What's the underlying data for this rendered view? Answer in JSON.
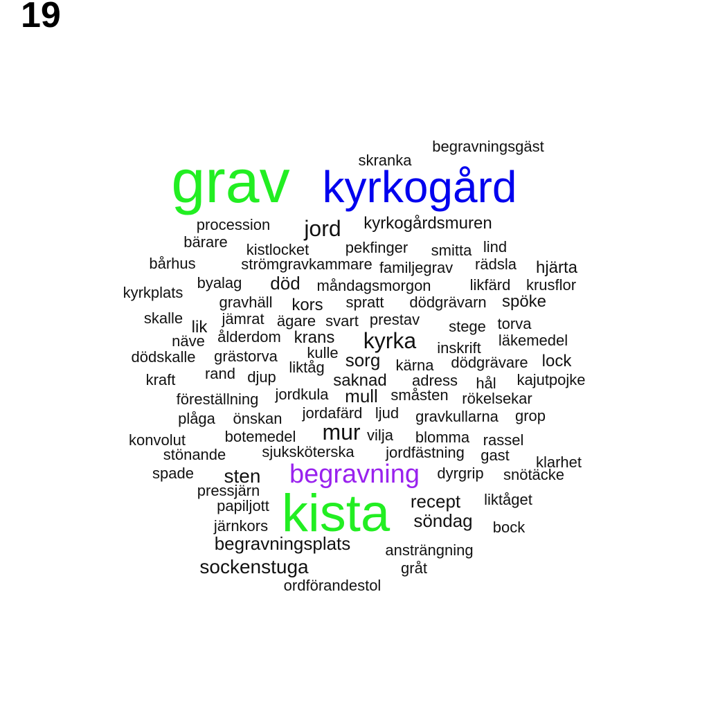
{
  "page_number": "19",
  "colors": {
    "green": "#22ee22",
    "blue": "#0000ee",
    "purple": "#9922ee",
    "black": "#111111"
  },
  "words": [
    {
      "text": "grav",
      "color": "#22ee22"
    },
    {
      "text": "kyrkogård",
      "color": "#0000ee"
    },
    {
      "text": "kista",
      "color": "#22ee22"
    },
    {
      "text": "begravning",
      "color": "#9922ee"
    },
    {
      "text": "begravningsgäst",
      "color": "#111111"
    },
    {
      "text": "skranka",
      "color": "#111111"
    },
    {
      "text": "procession",
      "color": "#111111"
    },
    {
      "text": "jord",
      "color": "#111111"
    },
    {
      "text": "kyrkogårdsmuren",
      "color": "#111111"
    },
    {
      "text": "bärare",
      "color": "#111111"
    },
    {
      "text": "kistlocket",
      "color": "#111111"
    },
    {
      "text": "pekfinger",
      "color": "#111111"
    },
    {
      "text": "smitta",
      "color": "#111111"
    },
    {
      "text": "lind",
      "color": "#111111"
    },
    {
      "text": "bårhus",
      "color": "#111111"
    },
    {
      "text": "strömgravkammare",
      "color": "#111111"
    },
    {
      "text": "familjegrav",
      "color": "#111111"
    },
    {
      "text": "rädsla",
      "color": "#111111"
    },
    {
      "text": "hjärta",
      "color": "#111111"
    },
    {
      "text": "kyrkplats",
      "color": "#111111"
    },
    {
      "text": "byalag",
      "color": "#111111"
    },
    {
      "text": "död",
      "color": "#111111"
    },
    {
      "text": "måndagsmorgon",
      "color": "#111111"
    },
    {
      "text": "likfärd",
      "color": "#111111"
    },
    {
      "text": "krusflor",
      "color": "#111111"
    },
    {
      "text": "gravhäll",
      "color": "#111111"
    },
    {
      "text": "kors",
      "color": "#111111"
    },
    {
      "text": "spratt",
      "color": "#111111"
    },
    {
      "text": "dödgrävarn",
      "color": "#111111"
    },
    {
      "text": "spöke",
      "color": "#111111"
    },
    {
      "text": "skalle",
      "color": "#111111"
    },
    {
      "text": "lik",
      "color": "#111111"
    },
    {
      "text": "jämrat",
      "color": "#111111"
    },
    {
      "text": "ägare",
      "color": "#111111"
    },
    {
      "text": "svart",
      "color": "#111111"
    },
    {
      "text": "prestav",
      "color": "#111111"
    },
    {
      "text": "stege",
      "color": "#111111"
    },
    {
      "text": "torva",
      "color": "#111111"
    },
    {
      "text": "näve",
      "color": "#111111"
    },
    {
      "text": "ålderdom",
      "color": "#111111"
    },
    {
      "text": "krans",
      "color": "#111111"
    },
    {
      "text": "kyrka",
      "color": "#111111"
    },
    {
      "text": "inskrift",
      "color": "#111111"
    },
    {
      "text": "läkemedel",
      "color": "#111111"
    },
    {
      "text": "dödskalle",
      "color": "#111111"
    },
    {
      "text": "grästorva",
      "color": "#111111"
    },
    {
      "text": "kulle",
      "color": "#111111"
    },
    {
      "text": "sorg",
      "color": "#111111"
    },
    {
      "text": "kärna",
      "color": "#111111"
    },
    {
      "text": "dödgrävare",
      "color": "#111111"
    },
    {
      "text": "lock",
      "color": "#111111"
    },
    {
      "text": "liktåg",
      "color": "#111111"
    },
    {
      "text": "kraft",
      "color": "#111111"
    },
    {
      "text": "rand",
      "color": "#111111"
    },
    {
      "text": "djup",
      "color": "#111111"
    },
    {
      "text": "saknad",
      "color": "#111111"
    },
    {
      "text": "adress",
      "color": "#111111"
    },
    {
      "text": "hål",
      "color": "#111111"
    },
    {
      "text": "kajutpojke",
      "color": "#111111"
    },
    {
      "text": "föreställning",
      "color": "#111111"
    },
    {
      "text": "jordkula",
      "color": "#111111"
    },
    {
      "text": "mull",
      "color": "#111111"
    },
    {
      "text": "småsten",
      "color": "#111111"
    },
    {
      "text": "rökelsekar",
      "color": "#111111"
    },
    {
      "text": "plåga",
      "color": "#111111"
    },
    {
      "text": "önskan",
      "color": "#111111"
    },
    {
      "text": "jordafärd",
      "color": "#111111"
    },
    {
      "text": "ljud",
      "color": "#111111"
    },
    {
      "text": "gravkullarna",
      "color": "#111111"
    },
    {
      "text": "grop",
      "color": "#111111"
    },
    {
      "text": "konvolut",
      "color": "#111111"
    },
    {
      "text": "botemedel",
      "color": "#111111"
    },
    {
      "text": "mur",
      "color": "#111111"
    },
    {
      "text": "vilja",
      "color": "#111111"
    },
    {
      "text": "blomma",
      "color": "#111111"
    },
    {
      "text": "rassel",
      "color": "#111111"
    },
    {
      "text": "stönande",
      "color": "#111111"
    },
    {
      "text": "sjuksköterska",
      "color": "#111111"
    },
    {
      "text": "jordfästning",
      "color": "#111111"
    },
    {
      "text": "gast",
      "color": "#111111"
    },
    {
      "text": "klarhet",
      "color": "#111111"
    },
    {
      "text": "spade",
      "color": "#111111"
    },
    {
      "text": "sten",
      "color": "#111111"
    },
    {
      "text": "dyrgrip",
      "color": "#111111"
    },
    {
      "text": "snötäcke",
      "color": "#111111"
    },
    {
      "text": "pressjärn",
      "color": "#111111"
    },
    {
      "text": "recept",
      "color": "#111111"
    },
    {
      "text": "liktåget",
      "color": "#111111"
    },
    {
      "text": "papiljott",
      "color": "#111111"
    },
    {
      "text": "söndag",
      "color": "#111111"
    },
    {
      "text": "järnkors",
      "color": "#111111"
    },
    {
      "text": "bock",
      "color": "#111111"
    },
    {
      "text": "begravningsplats",
      "color": "#111111"
    },
    {
      "text": "ansträngning",
      "color": "#111111"
    },
    {
      "text": "sockenstuga",
      "color": "#111111"
    },
    {
      "text": "gråt",
      "color": "#111111"
    },
    {
      "text": "ordförandestol",
      "color": "#111111"
    }
  ]
}
